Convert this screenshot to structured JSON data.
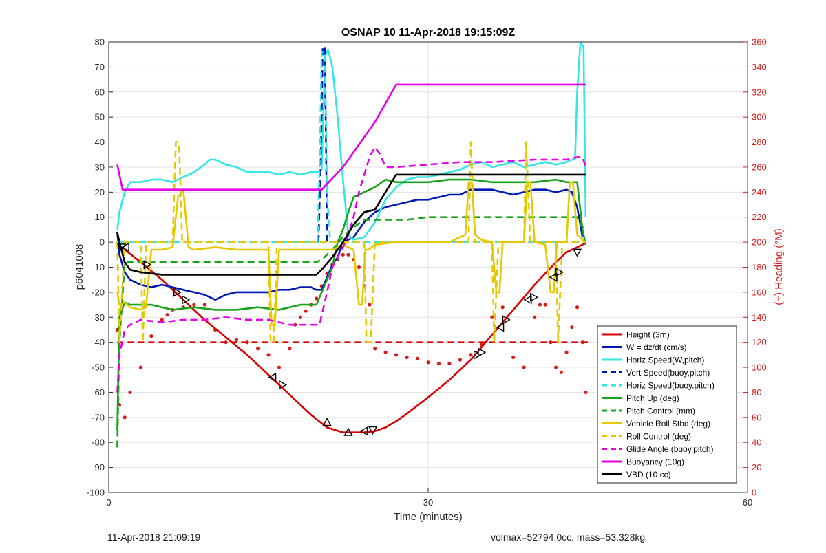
{
  "footer": {
    "timestamp": "11-Apr-2018 21:09:19",
    "summary": "volmax=52794.0cc, mass=53.328kg"
  },
  "chart_data": {
    "type": "line",
    "title": "OSNAP 10 11-Apr-2018 19:15:09Z",
    "xlabel": "Time (minutes)",
    "ylabel_left": "p6041008",
    "ylabel_right": "(+) Heading (°M)",
    "xlim": [
      0,
      60
    ],
    "ylim_left": [
      -100,
      80
    ],
    "ylim_right": [
      0,
      360
    ],
    "x_ticks": [
      0,
      30,
      60
    ],
    "y_ticks_left": [
      -100,
      -90,
      -80,
      -70,
      -60,
      -50,
      -40,
      -30,
      -20,
      -10,
      0,
      10,
      20,
      30,
      40,
      50,
      60,
      70,
      80
    ],
    "y_ticks_right": [
      0,
      20,
      40,
      60,
      80,
      100,
      120,
      140,
      160,
      180,
      200,
      220,
      240,
      260,
      280,
      300,
      320,
      340,
      360
    ],
    "grid": true,
    "legend_position": "bottom-right",
    "colors": {
      "red": "#d90000",
      "blue": "#0019b4",
      "cyan": "#33e6e6",
      "green": "#18a318",
      "gold": "#e6c800",
      "magenta": "#e600e6",
      "black": "#000000",
      "heading": "#d81c1c"
    },
    "series": [
      {
        "name": "Height (3m)",
        "color": "#d90000",
        "dash": false,
        "x": [
          0.8,
          1.5,
          3,
          5,
          7,
          9,
          11,
          13,
          15,
          17,
          19,
          20.5,
          22,
          23,
          24,
          25,
          26,
          27,
          28,
          30,
          32,
          34,
          36,
          38,
          40,
          42,
          43,
          44,
          44.5,
          44.8
        ],
        "y": [
          -1,
          -3,
          -8,
          -15,
          -23,
          -31,
          -38,
          -45,
          -53,
          -61,
          -69,
          -74,
          -76,
          -76,
          -76,
          -75.5,
          -74,
          -71.5,
          -68.5,
          -62,
          -55,
          -47,
          -37,
          -27,
          -17,
          -8,
          -4,
          -2,
          -1,
          -0.5
        ]
      },
      {
        "name": "W = dz/dt (cm/s)",
        "color": "#0019b4",
        "dash": false,
        "x": [
          0.8,
          1,
          1.5,
          2,
          3,
          4,
          5,
          6,
          7,
          8,
          9,
          10,
          11,
          12,
          13,
          14,
          15,
          16,
          17,
          18,
          19,
          19.5,
          20,
          20.5,
          21,
          21.5,
          22,
          22.5,
          23,
          24,
          25,
          26,
          27,
          28,
          29,
          30,
          31,
          32,
          33,
          34,
          35,
          36,
          37,
          38,
          39,
          40,
          41,
          42,
          43,
          43.5,
          44,
          44.5
        ],
        "y": [
          4,
          -5,
          -12,
          -15,
          -17,
          -18,
          -17,
          -18,
          -19,
          -20,
          -21,
          -23,
          -21,
          -20,
          -20,
          -20,
          -20,
          -19,
          -19,
          -18,
          -18,
          -19,
          -19,
          -14,
          -9,
          -6,
          0,
          1,
          2,
          8,
          12,
          14,
          15,
          16,
          17,
          17,
          18,
          19,
          19,
          21,
          21,
          21,
          20,
          19,
          20,
          21,
          21,
          20,
          21,
          20,
          14,
          2
        ]
      },
      {
        "name": "Horiz Speed(W,pitch)",
        "color": "#33e6e6",
        "dash": false,
        "x": [
          0.8,
          1,
          1.5,
          2,
          3,
          4,
          5,
          6,
          7,
          8,
          9,
          9.5,
          10,
          11,
          12,
          13,
          14,
          15,
          16,
          17,
          18,
          19,
          19.8,
          20,
          20.3,
          20.6,
          21,
          21.5,
          22,
          22.5,
          23,
          24,
          25,
          26,
          27,
          28,
          29,
          30,
          31,
          32,
          33,
          34,
          35,
          36,
          37,
          38,
          39,
          40,
          41,
          42,
          43,
          43.5,
          43.8,
          44,
          44.3,
          44.6,
          44.8
        ],
        "y": [
          5,
          12,
          20,
          24,
          24,
          25,
          25,
          24,
          26,
          28,
          31,
          33,
          33,
          31,
          30,
          28,
          28,
          28,
          27,
          28,
          27,
          28,
          28,
          29,
          74,
          77,
          70,
          50,
          25,
          3,
          1,
          2,
          8,
          17,
          22,
          25,
          26,
          26,
          27,
          28,
          29,
          31,
          32,
          30,
          31,
          32,
          30,
          31,
          32,
          31,
          32,
          33,
          33,
          60,
          80,
          78,
          10
        ]
      },
      {
        "name": "Vert Speed(buoy,pitch)",
        "color": "#0019b4",
        "dash": true,
        "x": [
          19.7,
          19.9,
          20.1,
          20.3,
          20.5
        ],
        "y": [
          0,
          30,
          78,
          78,
          0
        ]
      },
      {
        "name": "Horiz Speed(buoy,pitch)",
        "color": "#33e6e6",
        "dash": true,
        "x": [
          0.8,
          19.6,
          19.8,
          20,
          20.3,
          20.5,
          20.8,
          44.8
        ],
        "y": [
          0,
          0,
          30,
          76,
          76,
          20,
          0,
          0
        ]
      },
      {
        "name": "Pitch Up (deg)",
        "color": "#18a318",
        "dash": false,
        "x": [
          0.8,
          1,
          1.5,
          2,
          4,
          6,
          8,
          10,
          12,
          14,
          16,
          18,
          19.5,
          20,
          21,
          21.5,
          22,
          22.5,
          23,
          24,
          25,
          26,
          27,
          28,
          30,
          32,
          34,
          36,
          38,
          40,
          42,
          43,
          44,
          44.5,
          44.8
        ],
        "y": [
          -75,
          -30,
          -24,
          -25,
          -25,
          -27,
          -26,
          -27,
          -27,
          -26,
          -27,
          -25,
          -25,
          -20,
          -10,
          0,
          5,
          12,
          18,
          20,
          22,
          25,
          24,
          24,
          24,
          25,
          25,
          24,
          24,
          24,
          25,
          24,
          24,
          5,
          -1
        ]
      },
      {
        "name": "Pitch Control (mm)",
        "color": "#18a318",
        "dash": true,
        "x": [
          0.8,
          1,
          1.5,
          19.5,
          20,
          21,
          22,
          23,
          24,
          26,
          28,
          30,
          35,
          40,
          43,
          44,
          44.5,
          44.8
        ],
        "y": [
          -82,
          -40,
          -8,
          -8,
          -7,
          -3,
          2,
          6,
          9,
          9,
          9,
          10,
          10,
          10,
          10,
          10,
          6,
          5
        ]
      },
      {
        "name": "Vehicle Roll Stbd (deg)",
        "color": "#e6c800",
        "dash": false,
        "x": [
          0.8,
          1,
          1.5,
          2,
          3,
          3.5,
          4,
          5,
          6,
          6.5,
          7,
          7.5,
          8,
          10,
          12,
          14,
          15,
          15.3,
          15.6,
          16,
          18,
          20,
          20.5,
          21,
          22,
          23,
          23.5,
          23.8,
          24.1,
          24.4,
          25,
          27,
          30,
          32,
          33.5,
          33.8,
          34.1,
          34.4,
          35,
          36,
          36.4,
          36.7,
          37,
          38,
          39,
          39.3,
          39.6,
          40,
          41,
          41.5,
          41.8,
          42.1,
          42.4,
          43,
          43.3,
          43.6,
          44,
          44.5,
          44.8
        ],
        "y": [
          -20,
          -25,
          -24,
          -26,
          -27,
          -26,
          -3,
          -3,
          -2,
          18,
          21,
          -2,
          -3,
          -2,
          -3,
          -3,
          -3,
          -33,
          -33,
          -3,
          -3,
          -3,
          -3,
          -3,
          -1,
          -3,
          -25,
          -25,
          -3,
          -3,
          -1,
          0,
          0,
          0,
          3,
          24,
          24,
          3,
          1,
          0,
          -20,
          -20,
          0,
          0,
          0,
          24,
          24,
          0,
          -1,
          -20,
          -20,
          0,
          0,
          0,
          24,
          24,
          3,
          1,
          0
        ]
      },
      {
        "name": "Roll Control (deg)",
        "color": "#e6c800",
        "dash": true,
        "x": [
          0.8,
          1,
          1.5,
          3,
          3.2,
          3.5,
          6,
          6.3,
          6.6,
          6.9,
          7.2,
          15,
          15.2,
          15.5,
          15.8,
          20,
          24,
          24.2,
          24.6,
          25,
          33.8,
          34,
          34.4,
          36,
          36.2,
          36.6,
          39,
          39.2,
          39.6,
          42,
          42.2,
          42.6,
          44.8
        ],
        "y": [
          0,
          -40,
          0,
          0,
          -40,
          0,
          0,
          40,
          40,
          0,
          0,
          0,
          -40,
          -40,
          0,
          0,
          0,
          -40,
          -40,
          0,
          0,
          40,
          0,
          0,
          -40,
          0,
          0,
          40,
          0,
          0,
          -40,
          0,
          0
        ]
      },
      {
        "name": "Glide Angle (buoy,pitch)",
        "color": "#e600e6",
        "dash": true,
        "x": [
          0.8,
          1,
          1.5,
          2,
          3,
          5,
          7,
          9,
          11,
          13,
          15,
          17,
          19,
          19.8,
          20.5,
          21,
          22,
          22.5,
          23,
          23.5,
          24,
          24.5,
          25,
          25.5,
          26,
          27,
          30,
          33,
          36,
          40,
          43,
          44,
          44.5,
          44.8
        ],
        "y": [
          -60,
          -45,
          -35,
          -33,
          -31,
          -32,
          -31,
          -31,
          -30,
          -31,
          -31,
          -33,
          -33,
          -33,
          -20,
          -10,
          -2,
          3,
          10,
          20,
          27,
          34,
          38,
          35,
          30,
          30,
          31,
          32,
          32,
          33,
          33,
          34,
          34,
          30
        ]
      },
      {
        "name": "Buoyancy (10g)",
        "color": "#e600e6",
        "dash": false,
        "x": [
          0.8,
          1.3,
          3,
          10,
          20,
          22,
          25,
          27,
          28,
          35,
          44.8
        ],
        "y": [
          31,
          21,
          21,
          21,
          21,
          30,
          48,
          63,
          63,
          63,
          63
        ]
      },
      {
        "name": "VBD (10 cc)",
        "color": "#000000",
        "dash": false,
        "x": [
          0.8,
          1,
          1.5,
          2,
          3,
          5,
          10,
          15,
          19.5,
          20,
          21,
          22,
          23,
          24,
          25,
          26,
          27,
          28,
          30,
          35,
          40,
          44.8
        ],
        "y": [
          4,
          0,
          -8,
          -11,
          -12,
          -13,
          -13,
          -13,
          -13,
          -11,
          -6,
          0,
          7,
          12,
          13,
          20,
          27,
          27,
          27,
          27,
          27,
          27
        ]
      }
    ],
    "reference_line": {
      "color": "#d90000",
      "dash": true,
      "x": [
        0.8,
        45
      ],
      "y": [
        -40,
        -40
      ]
    },
    "heading_points": {
      "color": "#d81c1c",
      "axis": "right",
      "x": [
        0.8,
        1,
        1.5,
        2,
        3,
        4,
        5,
        5.5,
        6,
        7,
        8,
        9,
        10,
        11,
        12,
        13,
        14,
        15,
        16,
        17,
        17.5,
        18,
        18.5,
        19,
        19.5,
        20,
        20.5,
        21,
        21.5,
        22,
        22.5,
        23,
        23.5,
        24,
        24.5,
        25,
        26,
        27,
        28,
        29,
        30,
        31,
        32,
        33,
        34,
        35,
        36,
        37,
        38,
        39,
        40,
        40.5,
        41,
        41.5,
        42,
        42.5,
        43,
        43.5,
        44,
        44.5,
        44.8
      ],
      "y": [
        130,
        70,
        60,
        80,
        100,
        125,
        138,
        142,
        146,
        148,
        150,
        150,
        130,
        120,
        122,
        120,
        115,
        110,
        100,
        115,
        134,
        140,
        145,
        150,
        155,
        165,
        175,
        182,
        186,
        190,
        190,
        186,
        180,
        165,
        150,
        115,
        112,
        110,
        108,
        107,
        104,
        103,
        103,
        106,
        110,
        118,
        140,
        148,
        108,
        100,
        140,
        150,
        150,
        120,
        100,
        96,
        112,
        132,
        148,
        120,
        80
      ]
    },
    "markers": {
      "color": "#000000",
      "x": [
        1.2,
        1.6,
        3.6,
        6.4,
        7.2,
        15.4,
        16.3,
        20.5,
        22.5,
        24,
        24.8,
        34.6,
        35,
        36.8,
        37.3,
        39.4,
        39.9,
        41.8,
        42.3,
        44
      ],
      "y": [
        -2,
        -2,
        -9,
        -20,
        -23,
        -54,
        -57,
        -72,
        -76,
        -75.5,
        -75,
        -45,
        -44,
        -34,
        -31,
        -23,
        -22,
        -14,
        -12,
        -4
      ],
      "orient": [
        "down",
        "left",
        "right",
        "right",
        "right",
        "left",
        "right",
        "up",
        "up",
        "left",
        "down",
        "right",
        "right",
        "left",
        "right",
        "left",
        "right",
        "left",
        "right",
        "down"
      ]
    }
  }
}
